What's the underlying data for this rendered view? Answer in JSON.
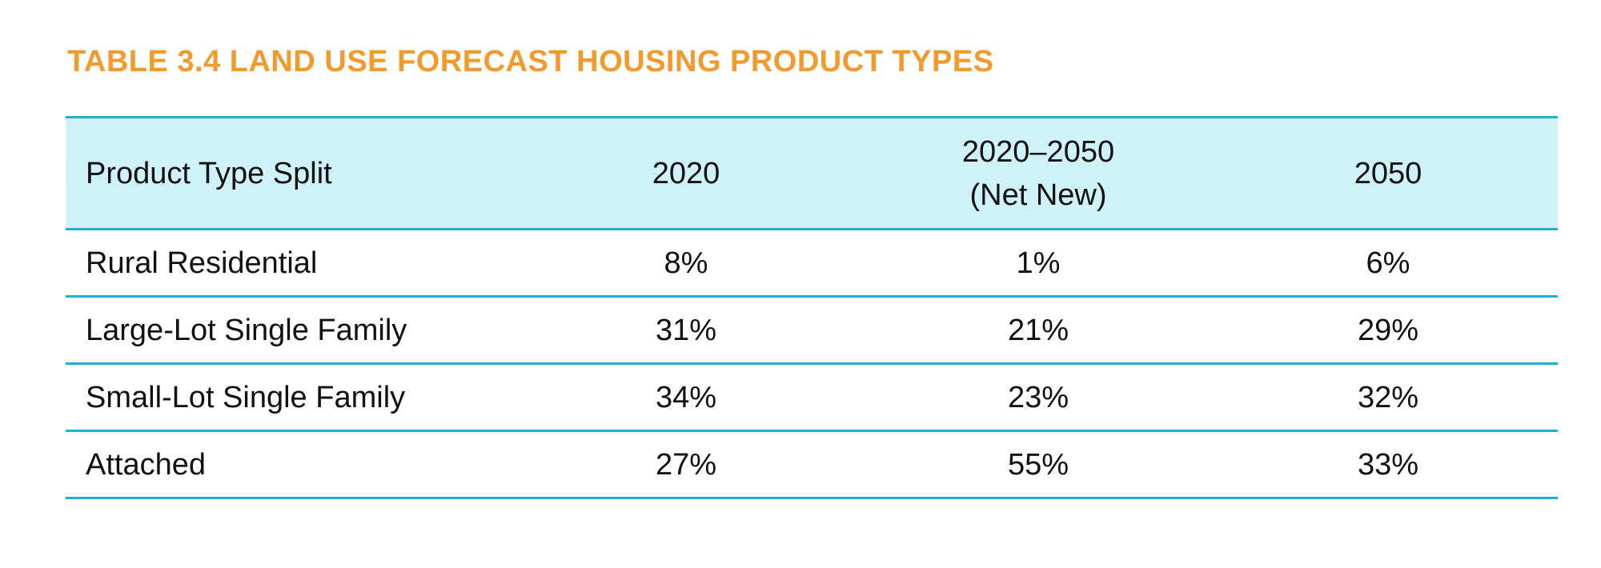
{
  "title": "TABLE 3.4 LAND USE FORECAST HOUSING PRODUCT TYPES",
  "colors": {
    "title": "#f39a2d",
    "header_bg": "#cff2f8",
    "rule": "#1eb2d2"
  },
  "table": {
    "headers": [
      "Product Type Split",
      "2020",
      "2020–2050",
      "2050"
    ],
    "header_subtitle": "(Net New)",
    "rows": [
      [
        "Rural Residential",
        "8%",
        "1%",
        "6%"
      ],
      [
        "Large-Lot Single Family",
        "31%",
        "21%",
        "29%"
      ],
      [
        "Small-Lot Single Family",
        "34%",
        "23%",
        "32%"
      ],
      [
        "Attached",
        "27%",
        "55%",
        "33%"
      ]
    ]
  }
}
